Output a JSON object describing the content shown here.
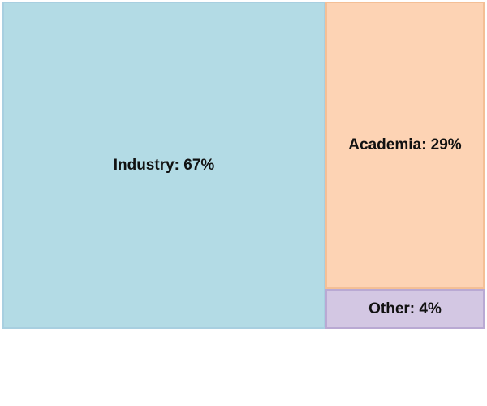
{
  "chart_data": {
    "type": "treemap",
    "title": "",
    "items": [
      {
        "label": "Industry: 67%",
        "name": "Industry",
        "value": 67,
        "color": "#b3dbe5",
        "border": "#a8cfe0"
      },
      {
        "label": "Academia: 29%",
        "name": "Academia",
        "value": 29,
        "color": "#fdd3b4",
        "border": "#f4bf96"
      },
      {
        "label": "Other: 4%",
        "name": "Other",
        "value": 4,
        "color": "#d3c7e3",
        "border": "#b9a9d3"
      }
    ]
  }
}
